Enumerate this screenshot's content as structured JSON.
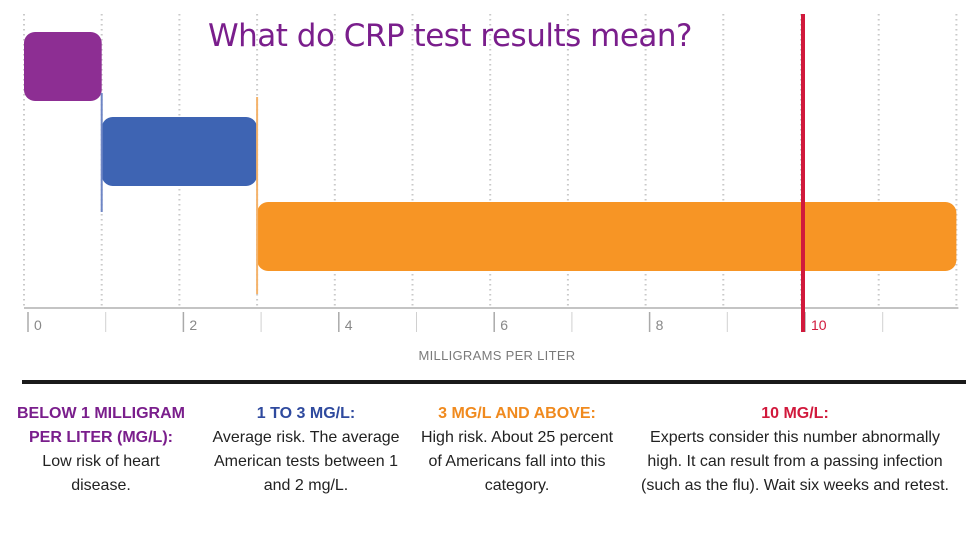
{
  "title": "What do CRP test results mean?",
  "colors": {
    "purple": "#8d2e93",
    "blue": "#3e64b3",
    "orange": "#f79525",
    "red": "#d1193c",
    "grid": "#c9c9c9",
    "title": "#7a1e8c"
  },
  "chart_data": {
    "type": "bar",
    "orientation": "horizontal-range",
    "title": "What do CRP test results mean?",
    "xlabel": "MILLIGRAMS PER LITER",
    "ylabel": "",
    "xlim": [
      0,
      12
    ],
    "x_ticks": [
      "0",
      "2",
      "4",
      "6",
      "8",
      "10"
    ],
    "x_tick_values": [
      0,
      2,
      4,
      6,
      8,
      10
    ],
    "grid": "vertical dotted",
    "ranges": [
      {
        "start": 0,
        "end": 1,
        "color": "#8d2e93"
      },
      {
        "start": 1,
        "end": 3,
        "color": "#3e64b3"
      },
      {
        "start": 3,
        "end": 12,
        "color": "#f79525"
      }
    ],
    "reference_line": {
      "x": 10,
      "color": "#d1193c"
    }
  },
  "legend": [
    {
      "heading": "BELOW 1 MILLIGRAM PER LITER (MG/L):",
      "body": "Low risk of heart disease.",
      "color": "#7a1e8c"
    },
    {
      "heading": "1 TO 3 MG/L:",
      "body": "Average risk. The average American tests between 1 and 2 mg/L.",
      "color": "#2f4a9e"
    },
    {
      "heading": "3 MG/L AND ABOVE:",
      "body": "High risk. About 25 percent of Americans fall into this category.",
      "color": "#f08a1e"
    },
    {
      "heading": "10 MG/L:",
      "body": "Experts consider this number abnormally high. It can result from a passing infection (such as the flu). Wait six weeks and retest.",
      "color": "#d1193c"
    }
  ]
}
